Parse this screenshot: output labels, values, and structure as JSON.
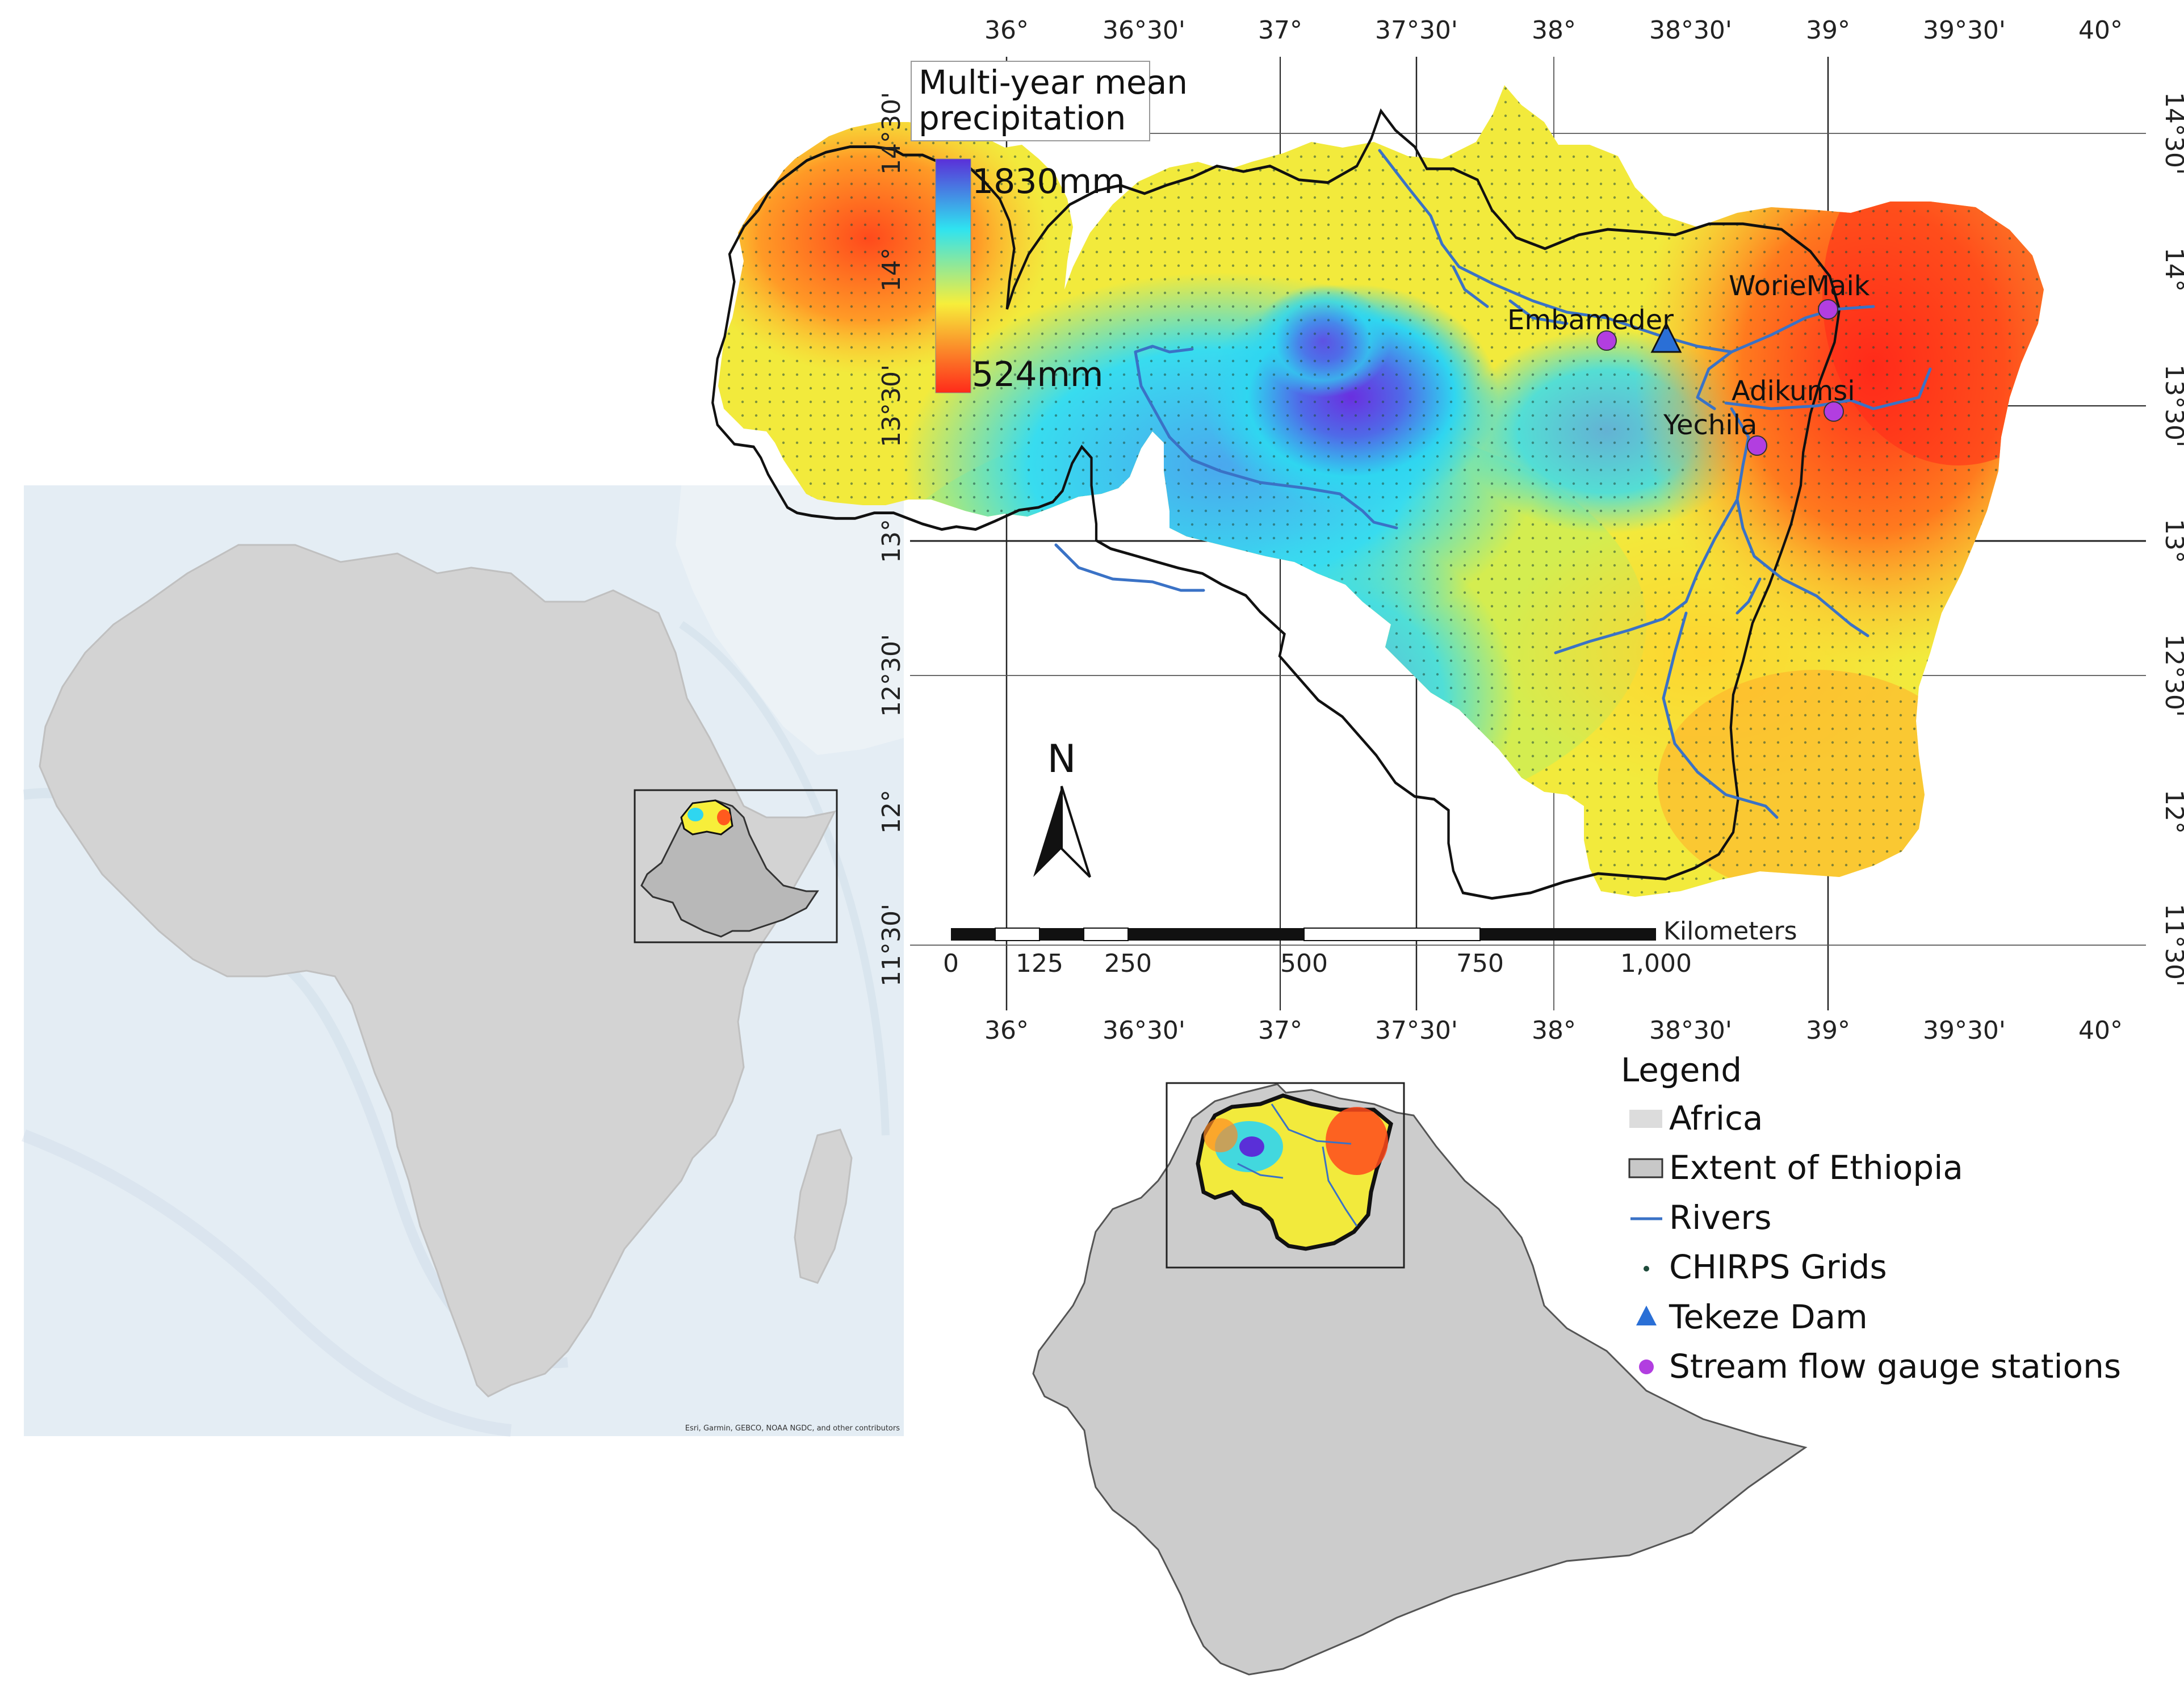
{
  "graticule": {
    "top_labels": [
      "36°",
      "36°30'",
      "37°",
      "37°30'",
      "38°",
      "38°30'",
      "39°",
      "39°30'",
      "40°"
    ],
    "bottom_labels": [
      "36°",
      "36°30'",
      "37°",
      "37°30'",
      "38°",
      "38°30'",
      "39°",
      "39°30'",
      "40°"
    ],
    "left_labels": [
      "14°30'",
      "14°",
      "13°30'",
      "13°",
      "12°30'",
      "12°",
      "11°30'"
    ],
    "right_labels": [
      "14°30'",
      "14°",
      "13°30'",
      "13°",
      "12°30'",
      "12°",
      "11°30'"
    ]
  },
  "precip_legend": {
    "title_line1": "Multi-year mean",
    "title_line2": "precipitation",
    "max_label": "1830mm",
    "min_label": "524mm",
    "gradient_colors": [
      "#5a2fd8",
      "#2fe3f0",
      "#f7ee3a",
      "#ff2a1a"
    ]
  },
  "stations": [
    {
      "name": "Embameder"
    },
    {
      "name": "WorieMaik"
    },
    {
      "name": "Adikumsi"
    },
    {
      "name": "Yechila"
    }
  ],
  "north_arrow": {
    "label": "N"
  },
  "scale_bar": {
    "unit": "Kilometers",
    "ticks": [
      "0",
      "125",
      "250",
      "500",
      "750",
      "1,000"
    ]
  },
  "legend": {
    "title": "Legend",
    "items": [
      {
        "label": "Africa",
        "icon": "rectangle-light-gray"
      },
      {
        "label": "Extent of Ethiopia",
        "icon": "rectangle-gray"
      },
      {
        "label": "Rivers",
        "icon": "line-blue"
      },
      {
        "label": "CHIRPS Grids",
        "icon": "dot-small"
      },
      {
        "label": "Tekeze Dam",
        "icon": "triangle-blue"
      },
      {
        "label": "Stream flow gauge stations",
        "icon": "dot-magenta"
      }
    ]
  },
  "africa_map": {
    "credit": "Esri, Garmin, GEBCO, NOAA NGDC, and other contributors"
  },
  "colors": {
    "africa_fill": "#d3d3d3",
    "ethiopia_fill": "#cccccc",
    "ocean": "#e3ecf3",
    "river": "#3a72c6",
    "station": "#b23ee0",
    "dam": "#2a6fd6"
  }
}
